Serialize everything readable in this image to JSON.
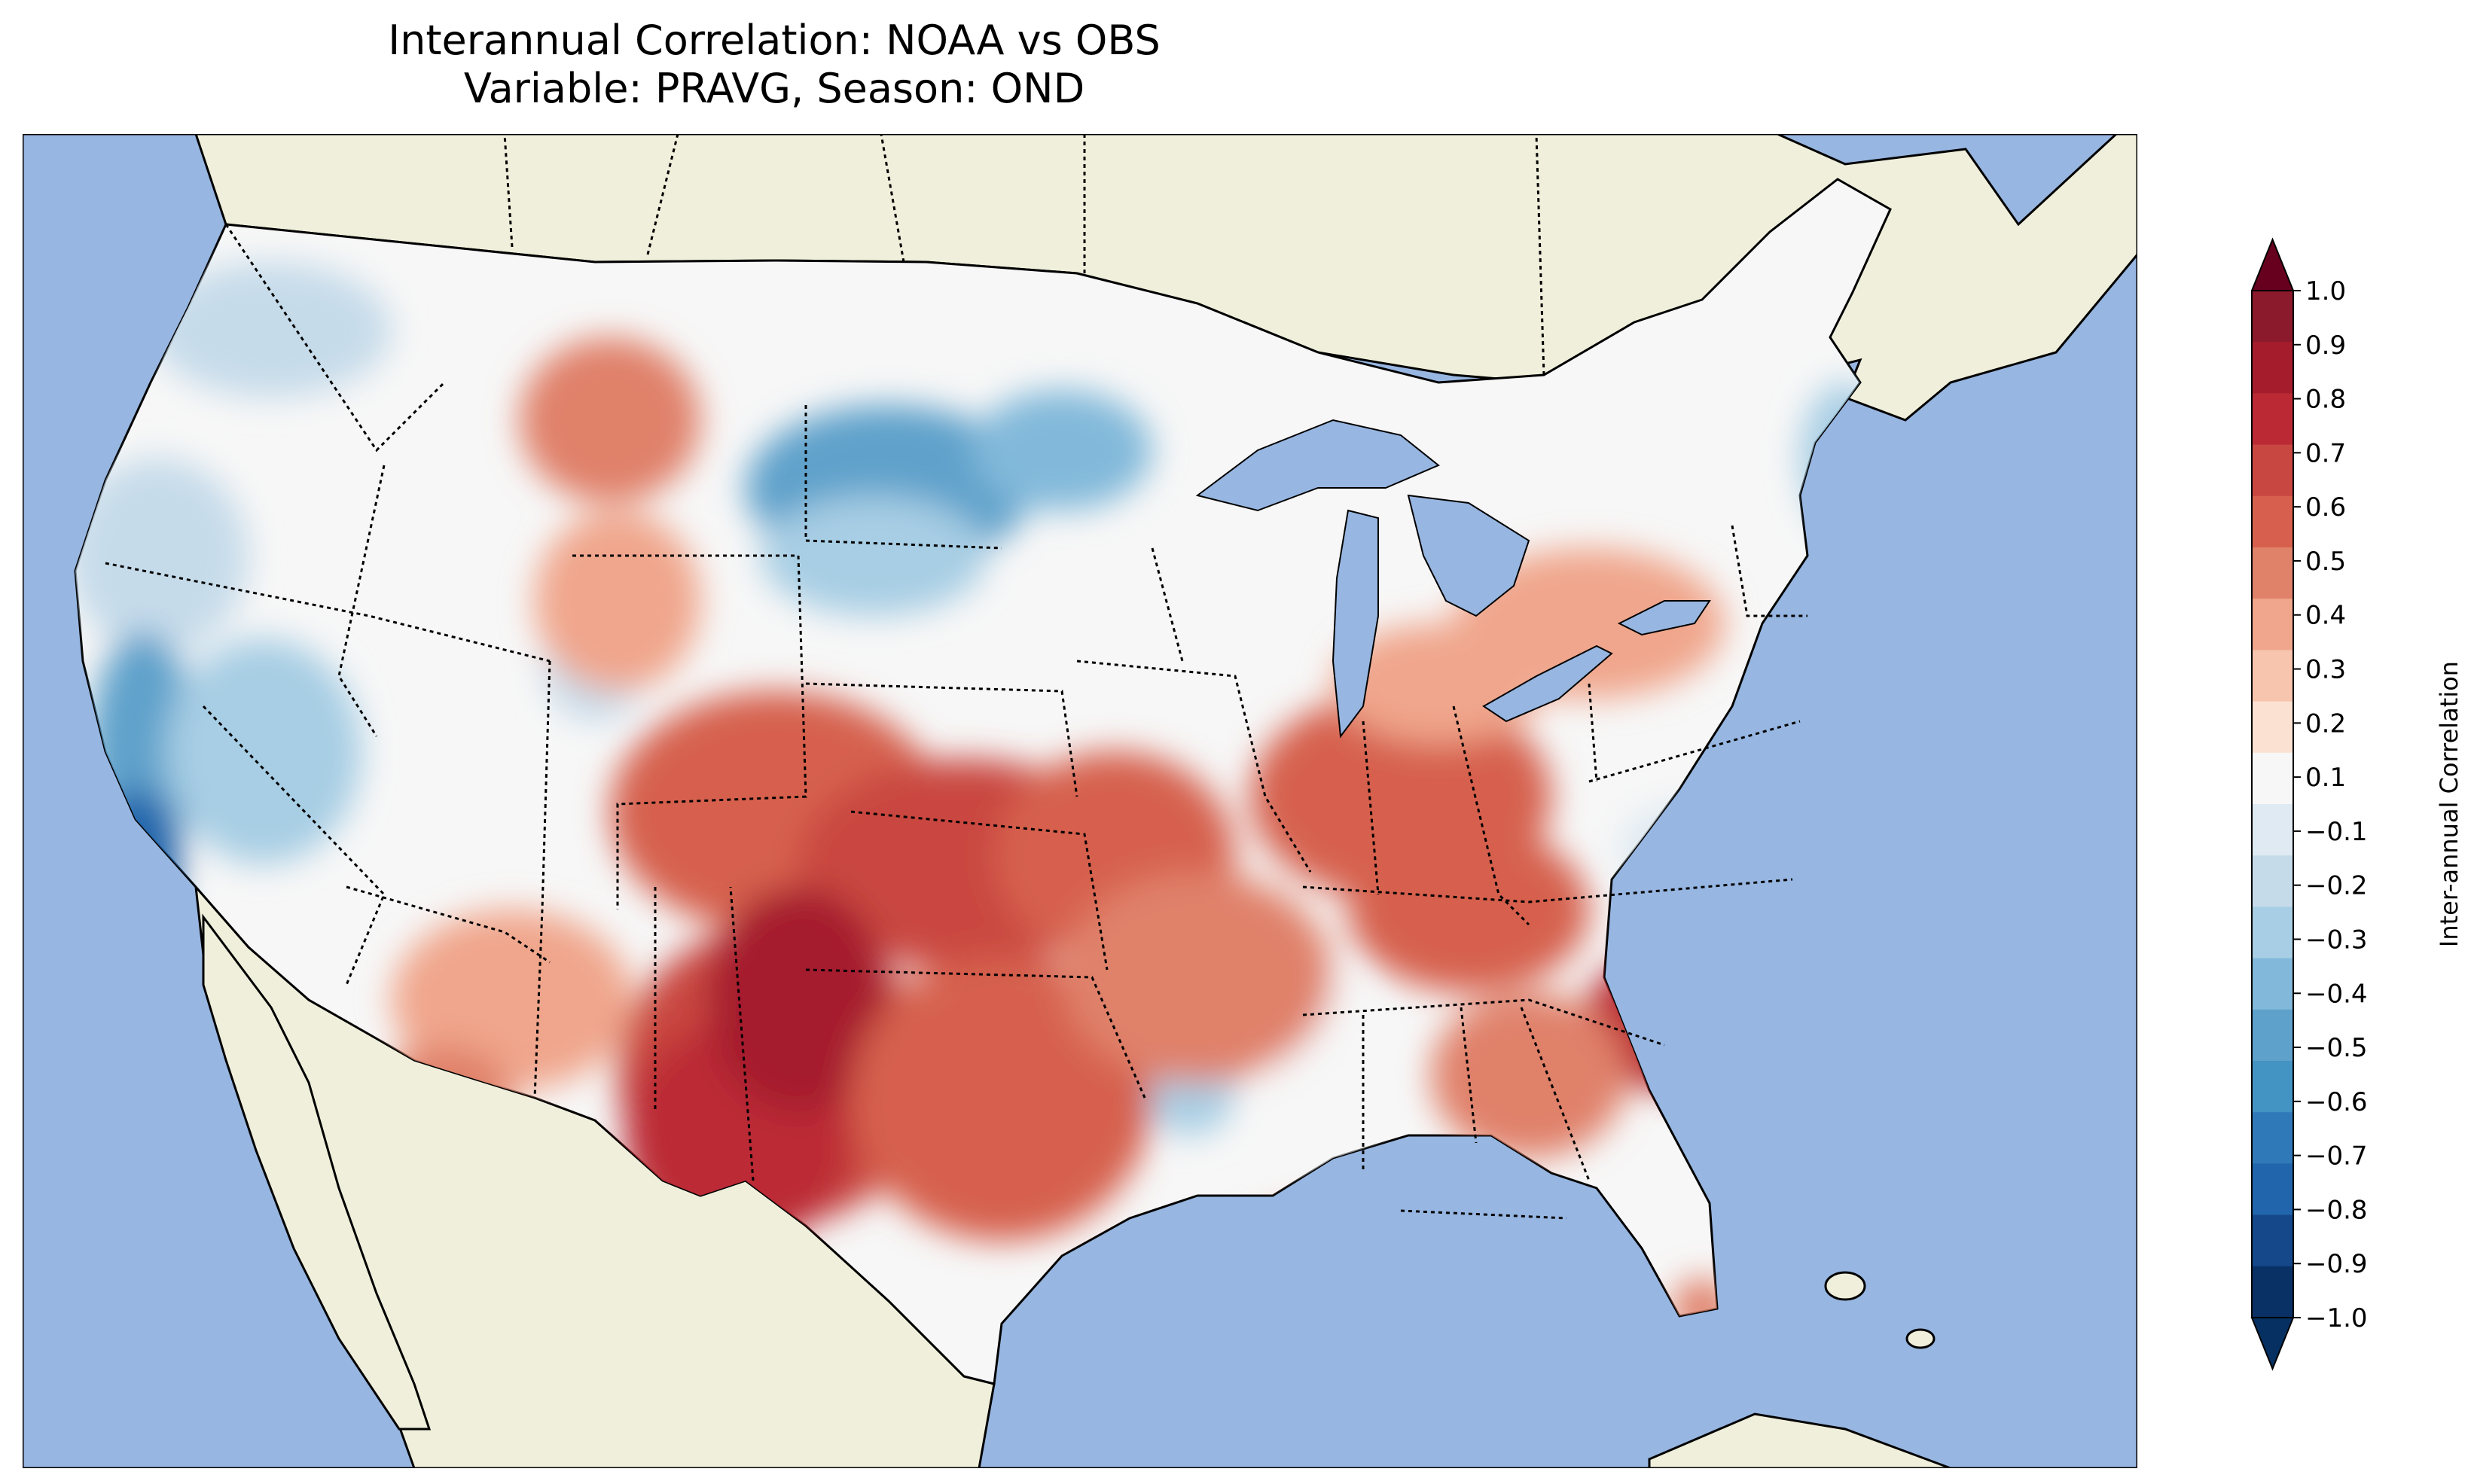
{
  "title": {
    "line1": "Interannual Correlation: NOAA vs OBS",
    "line2": "Variable: PRAVG, Season: OND"
  },
  "map": {
    "ocean_color": "#97b6e1",
    "land_color": "#efefdb",
    "border_color": "#000000"
  },
  "colorbar": {
    "label": "Inter-annual Correlation",
    "extend": "both",
    "ticks": [
      "1.0",
      "0.9",
      "0.8",
      "0.7",
      "0.6",
      "0.5",
      "0.4",
      "0.3",
      "0.2",
      "0.1",
      "−0.1",
      "−0.2",
      "−0.3",
      "−0.4",
      "−0.5",
      "−0.6",
      "−0.7",
      "−0.8",
      "−0.9",
      "−1.0"
    ],
    "colors_top_to_bottom": [
      "#8b1a2c",
      "#a51d2d",
      "#bb2a34",
      "#c94741",
      "#d6604d",
      "#e0816a",
      "#f0a68c",
      "#f7c4ad",
      "#fbe1d2",
      "#f7f7f7",
      "#dfeaf2",
      "#c6dbea",
      "#a7cee4",
      "#82b9da",
      "#5ea1cb",
      "#4393c3",
      "#3079b8",
      "#2166ac",
      "#15488b",
      "#0a3165"
    ],
    "extend_top_color": "#67001f",
    "extend_bottom_color": "#053061"
  }
}
